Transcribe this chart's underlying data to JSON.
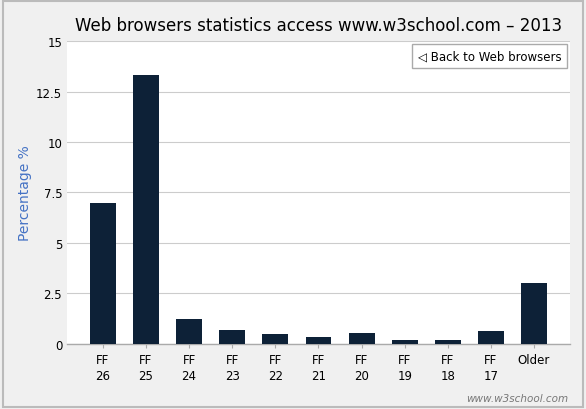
{
  "title": "Web browsers statistics access www.w3school.com – 2013",
  "ylabel": "Percentage %",
  "categories": [
    "FF\n26",
    "FF\n25",
    "FF\n24",
    "FF\n23",
    "FF\n22",
    "FF\n21",
    "FF\n20",
    "FF\n19",
    "FF\n18",
    "FF\n17",
    "Older"
  ],
  "values": [
    7.0,
    13.3,
    1.2,
    0.7,
    0.5,
    0.35,
    0.55,
    0.2,
    0.2,
    0.65,
    3.0
  ],
  "bar_color": "#0d2137",
  "ylim": [
    0,
    15
  ],
  "yticks": [
    0,
    2.5,
    5,
    7.5,
    10,
    12.5,
    15
  ],
  "ytick_labels": [
    "0",
    "2.5",
    "5",
    "7.5",
    "10",
    "12.5",
    "15"
  ],
  "background_color": "#f0f0f0",
  "plot_bg_color": "#ffffff",
  "grid_color": "#cccccc",
  "title_fontsize": 12,
  "ylabel_fontsize": 10,
  "ylabel_color": "#4472c4",
  "tick_fontsize": 8.5,
  "legend_text": "◁ Back to Web browsers",
  "watermark": "www.w3school.com",
  "border_color": "#aaaaaa",
  "outer_border_color": "#bbbbbb"
}
